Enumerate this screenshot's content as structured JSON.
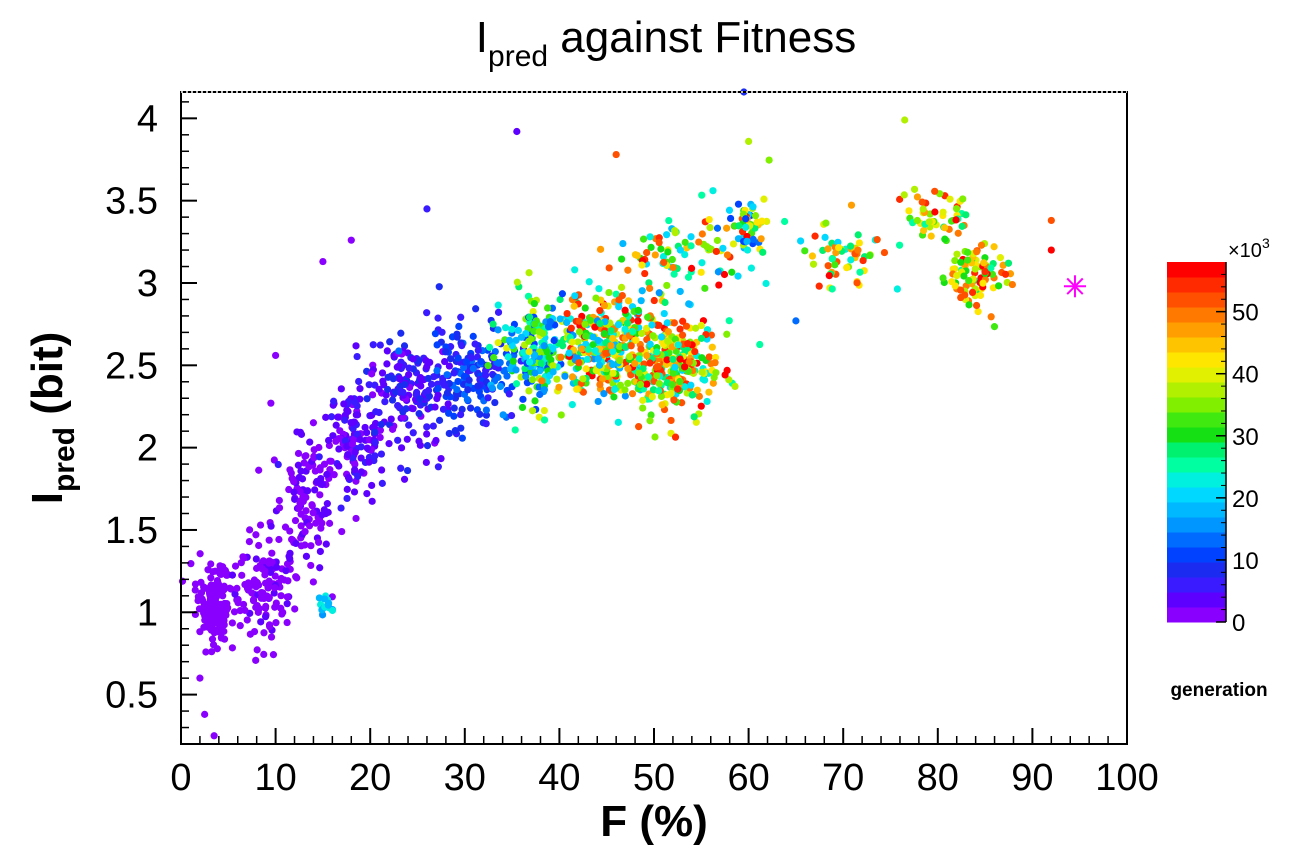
{
  "chart_data": {
    "type": "scatter",
    "title": {
      "main": "I",
      "sub": "pred",
      "rest": " against Fitness"
    },
    "xlabel": "F (%)",
    "ylabel": {
      "main": "I",
      "sub": "pred",
      "rest": " (bit)"
    },
    "xlim": [
      0,
      100
    ],
    "ylim": [
      0.2,
      4.16
    ],
    "x_ticks": [
      "0",
      "10",
      "20",
      "30",
      "40",
      "50",
      "60",
      "70",
      "80",
      "90",
      "100"
    ],
    "y_ticks": [
      "0.5",
      "1",
      "1.5",
      "2",
      "2.5",
      "3",
      "3.5",
      "4"
    ],
    "colorbar": {
      "label": "generation",
      "multiplier": "×10",
      "exponent": "3",
      "ticks": [
        "0",
        "10",
        "20",
        "30",
        "40",
        "50"
      ],
      "range": [
        0,
        58
      ],
      "colors": [
        "#8a00ff",
        "#5e00ff",
        "#3a1bff",
        "#1b2cf0",
        "#0042ff",
        "#006cff",
        "#0096ff",
        "#00b8ff",
        "#00d8ff",
        "#00f0e0",
        "#00ffa0",
        "#00f070",
        "#14e014",
        "#40ea10",
        "#80f000",
        "#b0f000",
        "#e0f000",
        "#ffe600",
        "#ffc400",
        "#ff9e00",
        "#ff7800",
        "#ff5000",
        "#ff2a00",
        "#ff0000"
      ]
    },
    "optimum_marker": {
      "x": 94.5,
      "y": 2.98,
      "color": "#ff00ff",
      "shape": "asterisk"
    },
    "series": [
      {
        "clusters": [
          {
            "cx": 3.5,
            "cy": 1.05,
            "sx": 1.6,
            "sy": 0.2,
            "n": 160,
            "g": [
              0,
              2
            ]
          },
          {
            "cx": 8.5,
            "cy": 1.15,
            "sx": 2.6,
            "sy": 0.28,
            "n": 120,
            "g": [
              0,
              3
            ]
          },
          {
            "cx": 13,
            "cy": 1.65,
            "sx": 2.8,
            "sy": 0.35,
            "n": 120,
            "g": [
              0,
              4
            ]
          },
          {
            "cx": 18,
            "cy": 2.05,
            "sx": 3.2,
            "sy": 0.3,
            "n": 140,
            "g": [
              1,
              6
            ]
          },
          {
            "cx": 24,
            "cy": 2.35,
            "sx": 4,
            "sy": 0.28,
            "n": 160,
            "g": [
              2,
              9
            ]
          },
          {
            "cx": 31,
            "cy": 2.45,
            "sx": 4,
            "sy": 0.25,
            "n": 170,
            "g": [
              5,
              14
            ]
          },
          {
            "cx": 38,
            "cy": 2.6,
            "sx": 3.5,
            "sy": 0.28,
            "n": 200,
            "g": [
              10,
              40
            ]
          },
          {
            "cx": 45,
            "cy": 2.6,
            "sx": 3.8,
            "sy": 0.28,
            "n": 300,
            "g": [
              15,
              58
            ]
          },
          {
            "cx": 52,
            "cy": 2.5,
            "sx": 4,
            "sy": 0.26,
            "n": 300,
            "g": [
              20,
              58
            ]
          },
          {
            "cx": 52,
            "cy": 3.15,
            "sx": 5,
            "sy": 0.22,
            "n": 80,
            "g": [
              15,
              58
            ]
          },
          {
            "cx": 60,
            "cy": 3.35,
            "sx": 3,
            "sy": 0.2,
            "n": 60,
            "g": [
              10,
              58
            ]
          },
          {
            "cx": 70,
            "cy": 3.15,
            "sx": 4,
            "sy": 0.15,
            "n": 60,
            "g": [
              20,
              58
            ]
          },
          {
            "cx": 80,
            "cy": 3.4,
            "sx": 3,
            "sy": 0.12,
            "n": 50,
            "g": [
              25,
              58
            ]
          },
          {
            "cx": 84,
            "cy": 3.05,
            "sx": 3,
            "sy": 0.17,
            "n": 90,
            "g": [
              25,
              58
            ]
          },
          {
            "cx": 15.5,
            "cy": 1.05,
            "sx": 0.6,
            "sy": 0.06,
            "n": 14,
            "g": [
              15,
              25
            ]
          }
        ]
      }
    ],
    "outliers": [
      {
        "x": 59.5,
        "y": 4.16,
        "g": 8
      },
      {
        "x": 35.5,
        "y": 3.92,
        "g": 4
      },
      {
        "x": 76.5,
        "y": 3.99,
        "g": 38
      },
      {
        "x": 46,
        "y": 3.78,
        "g": 52
      },
      {
        "x": 60,
        "y": 3.86,
        "g": 38
      },
      {
        "x": 18,
        "y": 3.26,
        "g": 2
      },
      {
        "x": 15,
        "y": 3.13,
        "g": 1
      },
      {
        "x": 92,
        "y": 3.38,
        "g": 52
      },
      {
        "x": 92,
        "y": 3.2,
        "g": 56
      },
      {
        "x": 65,
        "y": 2.77,
        "g": 14
      },
      {
        "x": 3.5,
        "y": 0.25,
        "g": 1
      },
      {
        "x": 2.5,
        "y": 0.38,
        "g": 1
      },
      {
        "x": 2,
        "y": 0.6,
        "g": 1
      },
      {
        "x": 10,
        "y": 2.56,
        "g": 1
      },
      {
        "x": 9.5,
        "y": 2.27,
        "g": 2
      },
      {
        "x": 26,
        "y": 3.45,
        "g": 6
      }
    ]
  }
}
